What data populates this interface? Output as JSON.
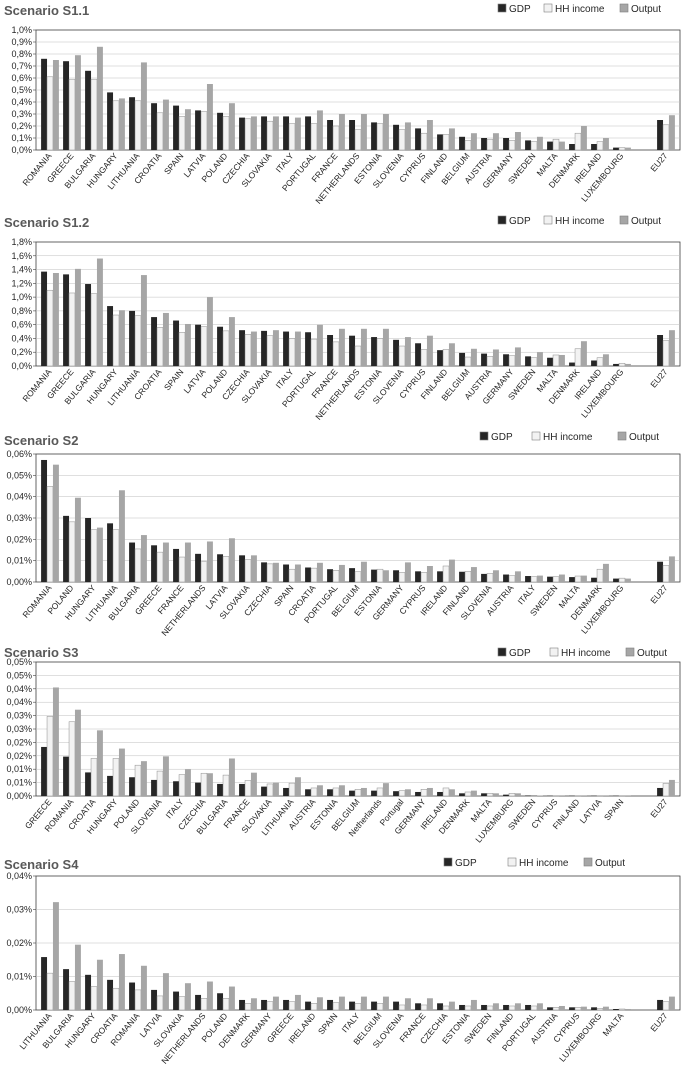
{
  "colors": {
    "gdp": "#262626",
    "hh": "#f2f2f2",
    "output": "#a6a6a6",
    "axis": "#404040",
    "grid": "#bfbfbf",
    "title": "#595959"
  },
  "chart_data": [
    {
      "type": "bar",
      "title": "Scenario S1.1",
      "legend": [
        "GDP",
        "HH income",
        "Output"
      ],
      "legend_position": "top-right",
      "ylim": [
        0,
        1.0
      ],
      "yticks": [
        "0,0%",
        "0,1%",
        "0,2%",
        "0,3%",
        "0,4%",
        "0,5%",
        "0,6%",
        "0,7%",
        "0,8%",
        "0,9%",
        "1,0%"
      ],
      "categories": [
        "ROMANIA",
        "GREECE",
        "BULGARIA",
        "HUNGARY",
        "LITHUANIA",
        "CROATIA",
        "SPAIN",
        "LATVIA",
        "POLAND",
        "CZECHIA",
        "SLOVAKIA",
        "ITALY",
        "PORTUGAL",
        "FRANCE",
        "NETHERLANDS",
        "ESTONIA",
        "SLOVENIA",
        "CYPRUS",
        "FINLAND",
        "BELGIUM",
        "AUSTRIA",
        "GERMANY",
        "SWEDEN",
        "MALTA",
        "DENMARK",
        "IRELAND",
        "LUXEMBOURG",
        "",
        "EU27"
      ],
      "series": [
        {
          "name": "GDP",
          "values": [
            0.76,
            0.74,
            0.66,
            0.48,
            0.44,
            0.39,
            0.37,
            0.33,
            0.31,
            0.27,
            0.28,
            0.28,
            0.28,
            0.25,
            0.25,
            0.23,
            0.21,
            0.18,
            0.13,
            0.11,
            0.1,
            0.1,
            0.08,
            0.07,
            0.05,
            0.05,
            0.02,
            null,
            0.25
          ]
        },
        {
          "name": "HH income",
          "values": [
            0.61,
            0.59,
            0.59,
            0.41,
            0.41,
            0.31,
            0.28,
            0.32,
            0.28,
            0.26,
            0.24,
            0.22,
            0.22,
            0.2,
            0.17,
            0.22,
            0.17,
            0.14,
            0.13,
            0.08,
            0.09,
            0.08,
            0.07,
            0.09,
            0.14,
            0.07,
            0.02,
            null,
            0.21
          ]
        },
        {
          "name": "Output",
          "values": [
            0.75,
            0.79,
            0.86,
            0.43,
            0.73,
            0.42,
            0.34,
            0.55,
            0.39,
            0.28,
            0.28,
            0.27,
            0.33,
            0.3,
            0.3,
            0.3,
            0.23,
            0.25,
            0.18,
            0.14,
            0.14,
            0.15,
            0.11,
            0.07,
            0.2,
            0.1,
            0.02,
            null,
            0.29
          ]
        }
      ]
    },
    {
      "type": "bar",
      "title": "Scenario S1.2",
      "legend": [
        "GDP",
        "HH income",
        "Output"
      ],
      "legend_position": "top-right",
      "ylim": [
        0,
        1.8
      ],
      "yticks": [
        "0,0%",
        "0,2%",
        "0,4%",
        "0,6%",
        "0,8%",
        "1,0%",
        "1,2%",
        "1,4%",
        "1,6%",
        "1,8%"
      ],
      "categories": [
        "ROMANIA",
        "GREECE",
        "BULGARIA",
        "HUNGARY",
        "LITHUANIA",
        "CROATIA",
        "SPAIN",
        "LATVIA",
        "POLAND",
        "CZECHIA",
        "SLOVAKIA",
        "ITALY",
        "PORTUGAL",
        "FRANCE",
        "NETHERLANDS",
        "ESTONIA",
        "SLOVENIA",
        "CYPRUS",
        "FINLAND",
        "BELGIUM",
        "AUSTRIA",
        "GERMANY",
        "SWEDEN",
        "MALTA",
        "DENMARK",
        "IRELAND",
        "LUXEMBOURG",
        "",
        "EU27"
      ],
      "series": [
        {
          "name": "GDP",
          "values": [
            1.37,
            1.33,
            1.19,
            0.87,
            0.8,
            0.71,
            0.66,
            0.6,
            0.57,
            0.52,
            0.51,
            0.5,
            0.49,
            0.45,
            0.44,
            0.42,
            0.38,
            0.33,
            0.23,
            0.19,
            0.18,
            0.17,
            0.14,
            0.12,
            0.05,
            0.08,
            0.03,
            null,
            0.45
          ]
        },
        {
          "name": "HH income",
          "values": [
            1.1,
            1.06,
            1.05,
            0.74,
            0.73,
            0.56,
            0.49,
            0.57,
            0.51,
            0.46,
            0.44,
            0.4,
            0.39,
            0.35,
            0.29,
            0.4,
            0.29,
            0.24,
            0.24,
            0.13,
            0.14,
            0.15,
            0.12,
            0.16,
            0.25,
            0.12,
            0.04,
            null,
            0.37
          ]
        },
        {
          "name": "Output",
          "values": [
            1.35,
            1.41,
            1.56,
            0.81,
            1.32,
            0.77,
            0.61,
            1.0,
            0.71,
            0.5,
            0.52,
            0.5,
            0.6,
            0.54,
            0.54,
            0.54,
            0.42,
            0.44,
            0.33,
            0.25,
            0.24,
            0.27,
            0.2,
            0.16,
            0.36,
            0.17,
            0.03,
            null,
            0.52
          ]
        }
      ]
    },
    {
      "type": "bar",
      "title": "Scenario S2",
      "legend": [
        "GDP",
        "HH income",
        "Output"
      ],
      "legend_position": "top-right",
      "ylim": [
        0,
        0.06
      ],
      "yticks": [
        "0,00%",
        "0,01%",
        "0,02%",
        "0,03%",
        "0,04%",
        "0,05%",
        "0,06%"
      ],
      "categories": [
        "ROMANIA",
        "POLAND",
        "HUNGARY",
        "LITHUANIA",
        "BULGARIA",
        "GREECE",
        "FRANCE",
        "NETHERLANDS",
        "LATVIA",
        "SLOVAKIA",
        "CZECHIA",
        "SPAIN",
        "CROATIA",
        "PORTUGAL",
        "BELGIUM",
        "ESTONIA",
        "GERMANY",
        "CYPRUS",
        "IRELAND",
        "FINLAND",
        "SLOVENIA",
        "AUSTRIA",
        "ITALY",
        "SWEDEN",
        "MALTA",
        "DENMARK",
        "LUXEMBOURG",
        "",
        "EU27"
      ],
      "series": [
        {
          "name": "GDP",
          "values": [
            0.0572,
            0.031,
            0.03,
            0.0275,
            0.0185,
            0.0172,
            0.0155,
            0.0132,
            0.013,
            0.0125,
            0.0092,
            0.0082,
            0.0068,
            0.006,
            0.0065,
            0.0058,
            0.0055,
            0.005,
            0.005,
            0.0048,
            0.0038,
            0.0035,
            0.0028,
            0.0025,
            0.0023,
            0.002,
            0.0016,
            null,
            0.0095
          ]
        },
        {
          "name": "HH income",
          "values": [
            0.0448,
            0.0282,
            0.0245,
            0.0245,
            0.0155,
            0.014,
            0.0117,
            0.0095,
            0.012,
            0.0105,
            0.0085,
            0.006,
            0.0065,
            0.0055,
            0.0048,
            0.006,
            0.0045,
            0.0045,
            0.0075,
            0.005,
            0.004,
            0.003,
            0.0025,
            0.0025,
            0.0028,
            0.006,
            0.0018,
            null,
            0.0078
          ]
        },
        {
          "name": "Output",
          "values": [
            0.055,
            0.0395,
            0.0255,
            0.043,
            0.022,
            0.0185,
            0.0185,
            0.019,
            0.0205,
            0.0125,
            0.009,
            0.0082,
            0.009,
            0.008,
            0.0095,
            0.0055,
            0.0092,
            0.0075,
            0.0105,
            0.007,
            0.0055,
            0.005,
            0.003,
            0.0035,
            0.003,
            0.0085,
            0.0016,
            null,
            0.012
          ]
        }
      ]
    },
    {
      "type": "bar",
      "title": "Scenario S3",
      "legend": [
        "GDP",
        "HH income",
        "Output"
      ],
      "legend_position": "top-right",
      "ylim": [
        0,
        0.05
      ],
      "yticks": [
        "0,00%",
        "0,01%",
        "0,01%",
        "0,02%",
        "0,02%",
        "0,03%",
        "0,03%",
        "0,04%",
        "0,04%",
        "0,05%",
        "0,05%"
      ],
      "categories": [
        "GREECE",
        "ROMANIA",
        "CROATIA",
        "HUNGARY",
        "POLAND",
        "SLOVENIA",
        "ITALY",
        "CZECHIA",
        "BULGARIA",
        "FRANCE",
        "SLOVAKIA",
        "LITHUANIA",
        "AUSTRIA",
        "ESTONIA",
        "BELGIUM",
        "Netherlands",
        "Portugal",
        "GERMANY",
        "IRELAND",
        "DENMARK",
        "MALTA",
        "LUXEMBURG",
        "SWEDEN",
        "CYPRUS",
        "FINLAND",
        "LATVIA",
        "SPAIN",
        "",
        "EU27"
      ],
      "series": [
        {
          "name": "GDP",
          "values": [
            0.0183,
            0.0147,
            0.0088,
            0.0075,
            0.007,
            0.006,
            0.0055,
            0.005,
            0.0045,
            0.0045,
            0.0035,
            0.003,
            0.0025,
            0.0025,
            0.002,
            0.002,
            0.0018,
            0.0015,
            0.0015,
            0.001,
            0.001,
            0.0005,
            0.0002,
            0.0001,
            0.0001,
            0.0001,
            0.0001,
            null,
            0.003
          ]
        },
        {
          "name": "HH income",
          "values": [
            0.0297,
            0.0277,
            0.014,
            0.014,
            0.0115,
            0.0093,
            0.008,
            0.0085,
            0.0078,
            0.0058,
            0.0045,
            0.0048,
            0.003,
            0.003,
            0.0025,
            0.003,
            0.002,
            0.0025,
            0.003,
            0.0015,
            0.001,
            0.001,
            0.0002,
            0.0001,
            0.0001,
            0.0001,
            0.0001,
            null,
            0.0047
          ]
        },
        {
          "name": "Output",
          "values": [
            0.0405,
            0.0322,
            0.0245,
            0.0177,
            0.013,
            0.0148,
            0.01,
            0.0085,
            0.014,
            0.0087,
            0.005,
            0.007,
            0.004,
            0.004,
            0.003,
            0.0048,
            0.0025,
            0.003,
            0.0025,
            0.002,
            0.001,
            0.001,
            0.0002,
            0.0001,
            0.0001,
            0.0001,
            0.0001,
            null,
            0.006
          ]
        }
      ]
    },
    {
      "type": "bar",
      "title": "Scenario S4",
      "legend": [
        "GDP",
        "HH income",
        "Output"
      ],
      "legend_position": "top-right",
      "ylim": [
        0,
        0.04
      ],
      "yticks": [
        "0,00%",
        "0,01%",
        "0,02%",
        "0,03%",
        "0,04%"
      ],
      "categories": [
        "LITHUANIA",
        "BULGARIA",
        "HUNGARY",
        "CROATIA",
        "ROMANIA",
        "LATVIA",
        "SLOVAKIA",
        "NETHERLANDS",
        "POLAND",
        "DENMARK",
        "GERMANY",
        "GREECE",
        "IRELAND",
        "SPAIN",
        "ITALY",
        "BELGIUM",
        "SLOVENIA",
        "FRANCE",
        "CZECHIA",
        "ESTONIA",
        "SWEDEN",
        "FINLAND",
        "PORTUGAL",
        "AUSTRIA",
        "CYPRUS",
        "LUXEMBOURG",
        "MALTA",
        "",
        "EU27"
      ],
      "series": [
        {
          "name": "GDP",
          "values": [
            0.0158,
            0.0122,
            0.0105,
            0.009,
            0.0082,
            0.006,
            0.0055,
            0.0045,
            0.005,
            0.003,
            0.003,
            0.003,
            0.0025,
            0.003,
            0.0025,
            0.0025,
            0.0025,
            0.002,
            0.002,
            0.0015,
            0.0015,
            0.0015,
            0.0015,
            0.0008,
            0.0008,
            0.0008,
            0.0003,
            null,
            0.003
          ]
        },
        {
          "name": "HH income",
          "values": [
            0.011,
            0.0085,
            0.007,
            0.0065,
            0.006,
            0.0042,
            0.004,
            0.0035,
            0.0035,
            0.002,
            0.0025,
            0.0025,
            0.002,
            0.0022,
            0.002,
            0.002,
            0.0015,
            0.0015,
            0.0012,
            0.0012,
            0.0012,
            0.0012,
            0.0012,
            0.0008,
            0.0008,
            0.0005,
            0.0003,
            null,
            0.0025
          ]
        },
        {
          "name": "Output",
          "values": [
            0.0322,
            0.0195,
            0.015,
            0.0167,
            0.0132,
            0.011,
            0.008,
            0.0085,
            0.007,
            0.0035,
            0.004,
            0.0045,
            0.0038,
            0.004,
            0.004,
            0.004,
            0.0035,
            0.0035,
            0.0025,
            0.003,
            0.002,
            0.002,
            0.002,
            0.0012,
            0.001,
            0.001,
            0.0003,
            null,
            0.004
          ]
        }
      ]
    }
  ]
}
